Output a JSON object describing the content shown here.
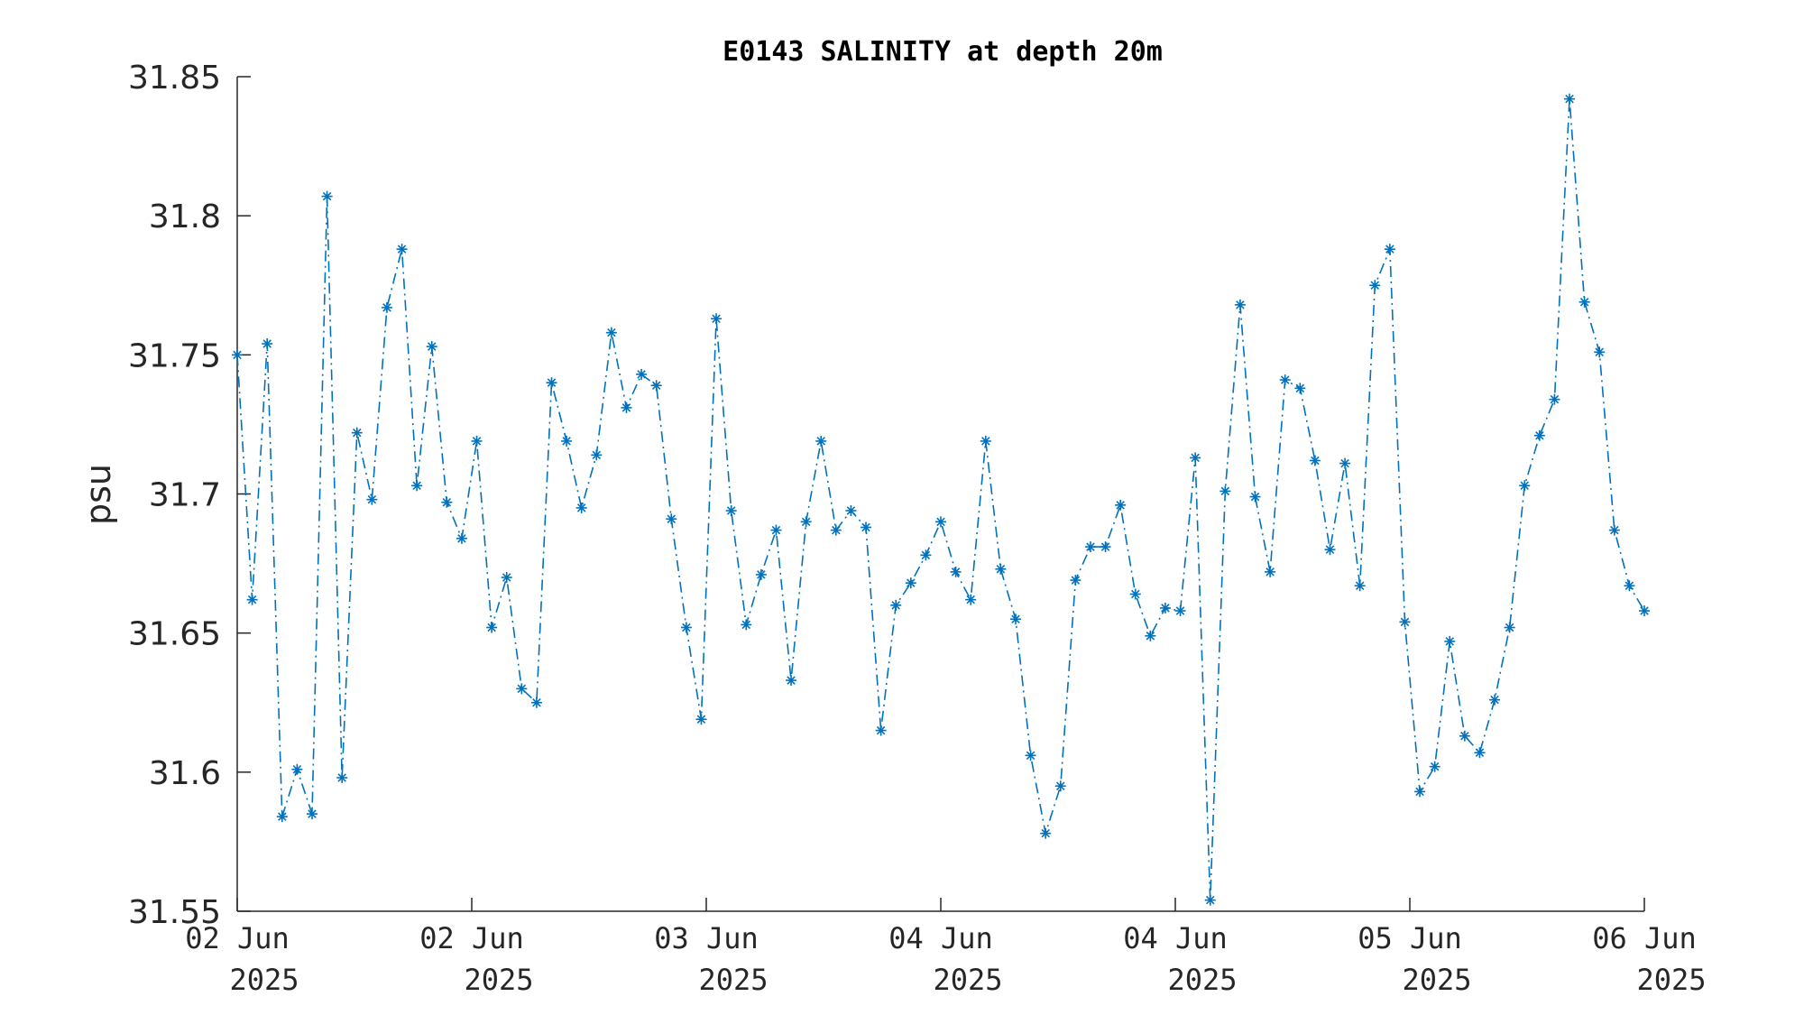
{
  "chart_data": {
    "type": "line",
    "title": "E0143 SALINITY at depth 20m",
    "xlabel": "",
    "ylabel": "psu",
    "ylim": [
      31.55,
      31.85
    ],
    "yticks": [
      31.55,
      31.6,
      31.65,
      31.7,
      31.75,
      31.8,
      31.85
    ],
    "ytick_labels": [
      "31.55",
      "31.6",
      "31.65",
      "31.7",
      "31.75",
      "31.8",
      "31.85"
    ],
    "xlim": [
      0,
      6
    ],
    "xticks": [
      0,
      1,
      2,
      3,
      4,
      5,
      6
    ],
    "xtick_labels": [
      [
        "02 Jun",
        "2025"
      ],
      [
        "02 Jun",
        "2025"
      ],
      [
        "03 Jun",
        "2025"
      ],
      [
        "04 Jun",
        "2025"
      ],
      [
        "04 Jun",
        "2025"
      ],
      [
        "05 Jun",
        "2025"
      ],
      [
        "06 Jun",
        "2025"
      ]
    ],
    "grid": false,
    "line_style": "dash-dot",
    "marker": "asterisk",
    "color": "#0072BD",
    "series": [
      {
        "values": [
          31.75,
          31.662,
          31.754,
          31.584,
          31.601,
          31.585,
          31.807,
          31.598,
          31.722,
          31.698,
          31.767,
          31.788,
          31.703,
          31.753,
          31.697,
          31.684,
          31.719,
          31.652,
          31.67,
          31.63,
          31.625,
          31.74,
          31.719,
          31.695,
          31.714,
          31.758,
          31.731,
          31.743,
          31.739,
          31.691,
          31.652,
          31.619,
          31.763,
          31.694,
          31.653,
          31.671,
          31.687,
          31.633,
          31.69,
          31.719,
          31.687,
          31.694,
          31.688,
          31.615,
          31.66,
          31.668,
          31.678,
          31.69,
          31.672,
          31.662,
          31.719,
          31.673,
          31.655,
          31.606,
          31.578,
          31.595,
          31.669,
          31.681,
          31.681,
          31.696,
          31.664,
          31.649,
          31.659,
          31.658,
          31.713,
          31.554,
          31.701,
          31.768,
          31.699,
          31.672,
          31.741,
          31.738,
          31.712,
          31.68,
          31.711,
          31.667,
          31.775,
          31.788,
          31.654,
          31.593,
          31.602,
          31.647,
          31.613,
          31.607,
          31.626,
          31.652,
          31.703,
          31.721,
          31.734,
          31.842,
          31.769,
          31.751,
          31.687,
          31.667,
          31.658
        ]
      }
    ]
  }
}
